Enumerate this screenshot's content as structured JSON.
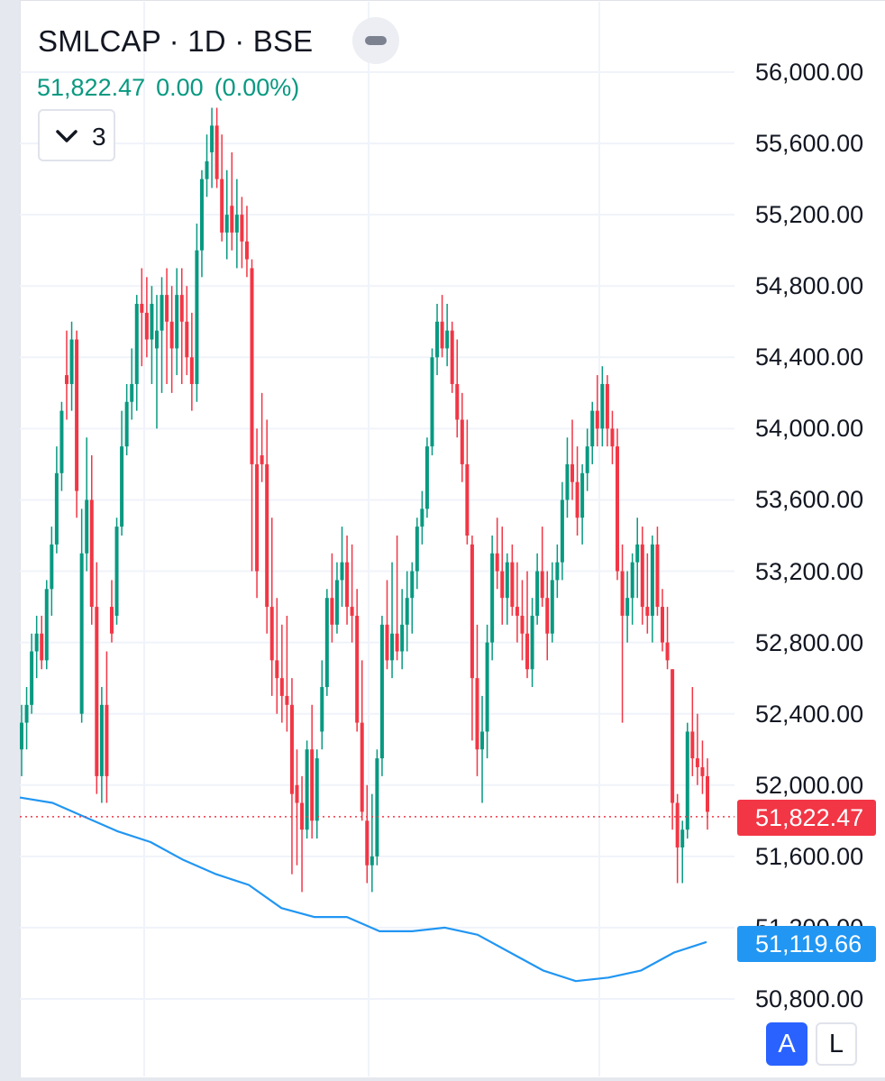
{
  "header": {
    "title": "SMLCAP · 1D · BSE",
    "last_price": "51,822.47",
    "change": "0.00",
    "change_pct": "(0.00%)",
    "indicator_count": "3"
  },
  "colors": {
    "up": "#089981",
    "down": "#f23645",
    "ma_line": "#2196f3",
    "grid": "#f0f3fa"
  },
  "scale_buttons": {
    "auto": "A",
    "log": "L"
  },
  "chart_data": {
    "type": "candlestick",
    "symbol": "SMLCAP",
    "interval": "1D",
    "exchange": "BSE",
    "y_axis": {
      "ticks": [
        "56,000.00",
        "55,600.00",
        "55,200.00",
        "54,800.00",
        "54,400.00",
        "54,000.00",
        "53,600.00",
        "53,200.00",
        "52,800.00",
        "52,400.00",
        "52,000.00",
        "51,600.00",
        "51,200.00",
        "50,800.00"
      ],
      "ylim": [
        50700,
        56100
      ]
    },
    "last_price_label": {
      "value": 51822.47,
      "text": "51,822.47",
      "color": "#f23645"
    },
    "ma_value_label": {
      "value": 51119.66,
      "text": "51,119.66",
      "color": "#2196f3"
    },
    "candles_ohlc": [
      [
        52200,
        52450,
        52050,
        52350
      ],
      [
        52350,
        52550,
        52200,
        52450
      ],
      [
        52450,
        52850,
        52400,
        52750
      ],
      [
        52750,
        52950,
        52600,
        52850
      ],
      [
        52850,
        52950,
        52650,
        52700
      ],
      [
        52700,
        53150,
        52650,
        53100
      ],
      [
        53100,
        53450,
        52950,
        53350
      ],
      [
        53350,
        53900,
        53300,
        53750
      ],
      [
        53750,
        54150,
        53650,
        54100
      ],
      [
        54300,
        54550,
        54050,
        54250
      ],
      [
        54250,
        54600,
        54100,
        54500
      ],
      [
        54500,
        54550,
        53500,
        53650
      ],
      [
        52400,
        53550,
        52350,
        53300
      ],
      [
        53300,
        53950,
        53200,
        53600
      ],
      [
        53600,
        53850,
        52900,
        53000
      ],
      [
        53000,
        53250,
        51950,
        52050
      ],
      [
        52050,
        52550,
        51900,
        52450
      ],
      [
        52450,
        52750,
        51900,
        52050
      ],
      [
        53000,
        53150,
        52800,
        52850
      ],
      [
        52950,
        53500,
        52900,
        53450
      ],
      [
        53450,
        54100,
        53400,
        53900
      ],
      [
        53900,
        54250,
        53850,
        54150
      ],
      [
        54150,
        54450,
        54050,
        54250
      ],
      [
        54250,
        54750,
        54100,
        54700
      ],
      [
        54700,
        54900,
        54350,
        54650
      ],
      [
        54650,
        54850,
        54400,
        54500
      ],
      [
        54500,
        54800,
        54250,
        54700
      ],
      [
        54450,
        54750,
        54000,
        54550
      ],
      [
        54550,
        54850,
        54200,
        54750
      ],
      [
        54750,
        54900,
        54250,
        54600
      ],
      [
        54600,
        54800,
        54200,
        54450
      ],
      [
        54450,
        54900,
        54300,
        54750
      ],
      [
        54750,
        54900,
        54250,
        54600
      ],
      [
        54600,
        54800,
        54300,
        54400
      ],
      [
        54400,
        54650,
        54100,
        54250
      ],
      [
        54250,
        55150,
        54150,
        55000
      ],
      [
        55000,
        55450,
        54850,
        55400
      ],
      [
        55400,
        55650,
        55300,
        55500
      ],
      [
        55550,
        55800,
        55350,
        55700
      ],
      [
        55700,
        55800,
        55350,
        55400
      ],
      [
        55400,
        55650,
        55050,
        55100
      ],
      [
        55100,
        55450,
        54950,
        55200
      ],
      [
        55250,
        55550,
        55000,
        55100
      ],
      [
        55100,
        55400,
        54900,
        55200
      ],
      [
        55200,
        55300,
        54900,
        55050
      ],
      [
        55050,
        55250,
        54850,
        54950
      ],
      [
        54900,
        54950,
        53200,
        53800
      ],
      [
        53800,
        54000,
        53050,
        53200
      ],
      [
        53850,
        54200,
        53700,
        53800
      ],
      [
        53800,
        54050,
        52850,
        53000
      ],
      [
        53000,
        53500,
        52500,
        52700
      ],
      [
        52700,
        53050,
        52400,
        52600
      ],
      [
        52600,
        52900,
        52350,
        52500
      ],
      [
        52500,
        52950,
        52300,
        52450
      ],
      [
        52450,
        52600,
        51500,
        51950
      ],
      [
        52000,
        52200,
        51550,
        51900
      ],
      [
        51900,
        52050,
        51400,
        51750
      ],
      [
        51750,
        52250,
        51700,
        52200
      ],
      [
        52200,
        52450,
        51700,
        51800
      ],
      [
        51800,
        52200,
        51700,
        52150
      ],
      [
        52300,
        52700,
        52200,
        52550
      ],
      [
        52550,
        53100,
        52500,
        53050
      ],
      [
        53050,
        53300,
        52800,
        52900
      ],
      [
        52900,
        53250,
        52850,
        53150
      ],
      [
        53150,
        53450,
        53000,
        53250
      ],
      [
        53250,
        53400,
        52900,
        53000
      ],
      [
        53000,
        53350,
        52800,
        52950
      ],
      [
        52950,
        53100,
        52300,
        52350
      ],
      [
        52350,
        52700,
        51800,
        51850
      ],
      [
        51800,
        52000,
        51450,
        51550
      ],
      [
        51550,
        51950,
        51400,
        51600
      ],
      [
        51600,
        52200,
        51550,
        52150
      ],
      [
        52150,
        52950,
        52050,
        52900
      ],
      [
        52900,
        53150,
        52650,
        52700
      ],
      [
        52700,
        53250,
        52600,
        52850
      ],
      [
        52850,
        53400,
        52700,
        52750
      ],
      [
        52750,
        53100,
        52650,
        52900
      ],
      [
        52900,
        53200,
        52750,
        53050
      ],
      [
        53050,
        53250,
        52850,
        53200
      ],
      [
        53200,
        53500,
        53100,
        53450
      ],
      [
        53450,
        53650,
        53350,
        53550
      ],
      [
        53550,
        53950,
        53500,
        53900
      ],
      [
        53900,
        54450,
        53850,
        54400
      ],
      [
        54400,
        54700,
        54300,
        54600
      ],
      [
        54600,
        54750,
        54400,
        54450
      ],
      [
        54450,
        54700,
        54350,
        54550
      ],
      [
        54550,
        54600,
        54200,
        54250
      ],
      [
        54250,
        54500,
        53950,
        54050
      ],
      [
        54050,
        54200,
        53700,
        53800
      ],
      [
        53800,
        54050,
        53350,
        53400
      ],
      [
        53350,
        53400,
        52250,
        52600
      ],
      [
        52600,
        52900,
        52050,
        52200
      ],
      [
        52200,
        52500,
        51900,
        52300
      ],
      [
        52300,
        52900,
        52150,
        52800
      ],
      [
        52800,
        53400,
        52700,
        53300
      ],
      [
        53300,
        53500,
        53100,
        53200
      ],
      [
        53200,
        53450,
        52900,
        53050
      ],
      [
        53050,
        53300,
        52900,
        53250
      ],
      [
        53250,
        53350,
        52950,
        53000
      ],
      [
        53000,
        53250,
        52800,
        52950
      ],
      [
        52950,
        53150,
        52700,
        52850
      ],
      [
        52850,
        53200,
        52600,
        52650
      ],
      [
        52650,
        53050,
        52550,
        52950
      ],
      [
        52950,
        53300,
        52900,
        53200
      ],
      [
        53200,
        53450,
        53000,
        53050
      ],
      [
        53050,
        53200,
        52700,
        52850
      ],
      [
        52850,
        53250,
        52800,
        53150
      ],
      [
        53150,
        53350,
        53050,
        53250
      ],
      [
        53250,
        53700,
        53150,
        53600
      ],
      [
        53600,
        53950,
        53500,
        53800
      ],
      [
        53800,
        54050,
        53600,
        53700
      ],
      [
        53700,
        53900,
        53400,
        53500
      ],
      [
        53500,
        53800,
        53350,
        53750
      ],
      [
        53750,
        54000,
        53650,
        53900
      ],
      [
        53900,
        54150,
        53800,
        54100
      ],
      [
        54100,
        54300,
        53900,
        54000
      ],
      [
        54000,
        54350,
        53900,
        54250
      ],
      [
        54250,
        54300,
        53900,
        54000
      ],
      [
        54000,
        54100,
        53800,
        53900
      ],
      [
        53900,
        54000,
        53150,
        53200
      ],
      [
        53200,
        53350,
        52350,
        52950
      ],
      [
        52950,
        53200,
        52800,
        53050
      ],
      [
        53050,
        53300,
        52900,
        53250
      ],
      [
        53250,
        53500,
        53050,
        53350
      ],
      [
        53350,
        53450,
        52900,
        53000
      ],
      [
        53000,
        53300,
        52850,
        52950
      ],
      [
        52950,
        53400,
        52800,
        53350
      ],
      [
        53350,
        53450,
        52950,
        53000
      ],
      [
        53000,
        53100,
        52750,
        52800
      ],
      [
        52800,
        53000,
        52650,
        52700
      ],
      [
        52650,
        52650,
        51750,
        51900
      ],
      [
        51900,
        51950,
        51450,
        51650
      ],
      [
        51650,
        51800,
        51450,
        51750
      ],
      [
        51750,
        52350,
        51700,
        52300
      ],
      [
        52300,
        52550,
        52050,
        52150
      ],
      [
        52150,
        52400,
        52000,
        52100
      ],
      [
        52100,
        52250,
        51950,
        52050
      ],
      [
        52050,
        52150,
        51750,
        51850
      ]
    ],
    "moving_average": {
      "type": "line",
      "values": [
        51930,
        51900,
        51820,
        51740,
        51680,
        51580,
        51500,
        51440,
        51310,
        51260,
        51260,
        51180,
        51180,
        51200,
        51160,
        51060,
        50960,
        50900,
        50920,
        50960,
        51060,
        51119.66
      ]
    },
    "grid": true
  }
}
